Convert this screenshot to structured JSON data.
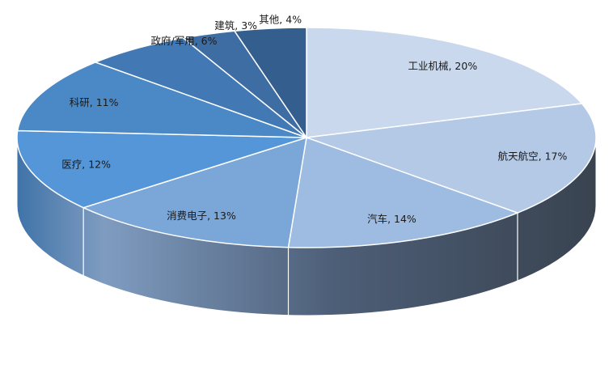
{
  "chart_data": {
    "type": "pie",
    "style": "3d",
    "labels_format": "category, percent",
    "slices": [
      {
        "label": "工业机械",
        "value": 20,
        "display": "工业机械, 20%",
        "color": "#c9d8ec"
      },
      {
        "label": "航天航空",
        "value": 17,
        "display": "航天航空, 17%",
        "color": "#b3c9e6"
      },
      {
        "label": "汽车",
        "value": 14,
        "display": "汽车, 14%",
        "color": "#9ebbe1"
      },
      {
        "label": "消费电子",
        "value": 13,
        "display": "消费电子, 13%",
        "color": "#7aa6d8"
      },
      {
        "label": "医疗",
        "value": 12,
        "display": "医疗, 12%",
        "color": "#5496d8"
      },
      {
        "label": "科研",
        "value": 11,
        "display": "科研, 11%",
        "color": "#4a88c6"
      },
      {
        "label": "政府/军用",
        "value": 6,
        "display": "政府/军用, 6%",
        "color": "#4279b4"
      },
      {
        "label": "建筑",
        "value": 3,
        "display": "建筑, 3%",
        "color": "#3d6da2"
      },
      {
        "label": "其他",
        "value": 4,
        "display": "其他, 4%",
        "color": "#345e8d"
      }
    ]
  }
}
